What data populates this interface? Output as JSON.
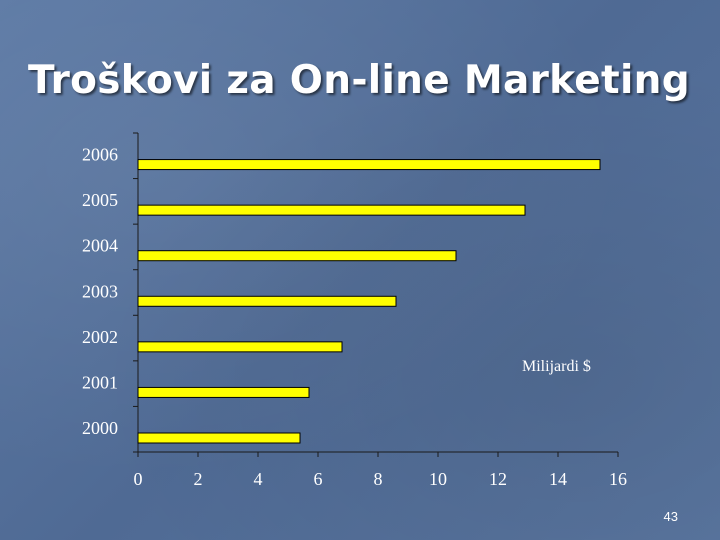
{
  "slide": {
    "title": "Troškovi za On-line Marketing",
    "page_number": "43"
  },
  "chart_data": {
    "type": "bar",
    "orientation": "horizontal",
    "categories": [
      "2000",
      "2001",
      "2002",
      "2003",
      "2004",
      "2005",
      "2006"
    ],
    "values": [
      5.4,
      5.7,
      6.8,
      8.6,
      10.6,
      12.9,
      15.4
    ],
    "title": "",
    "annotation": "Milijardi $",
    "xlim": [
      0,
      16
    ],
    "xticks": [
      "0",
      "2",
      "4",
      "6",
      "8",
      "10",
      "12",
      "14",
      "16"
    ],
    "bar_color": "#ffff00",
    "bar_edge_color": "#000000",
    "grid": false,
    "legend": "none"
  }
}
